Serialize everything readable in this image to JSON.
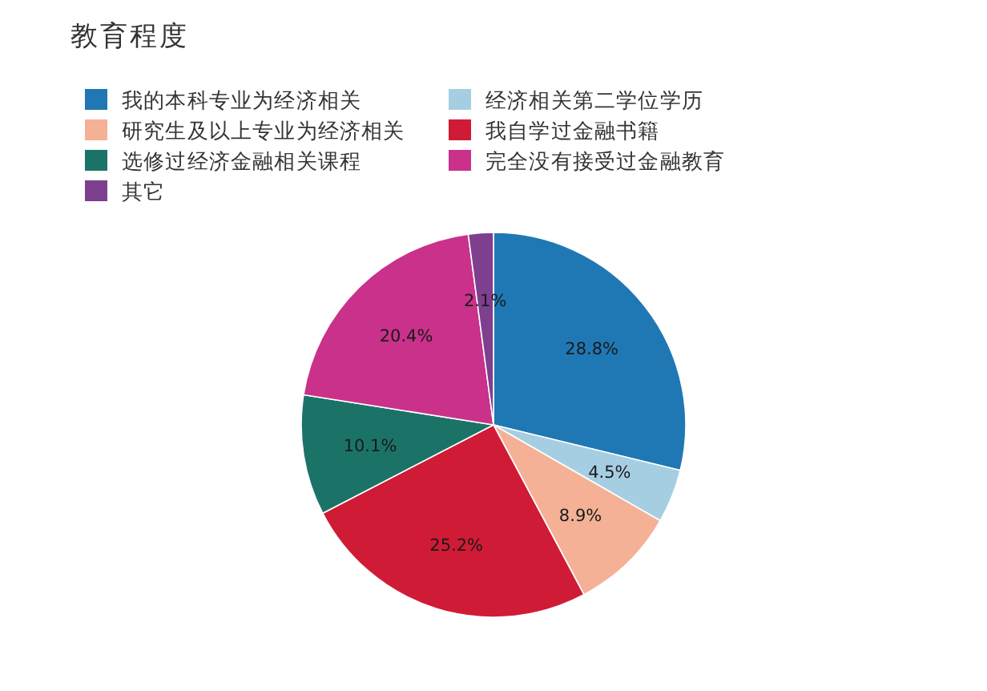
{
  "chart_data": {
    "type": "pie",
    "title": "教育程度",
    "categories": [
      "我的本科专业为经济相关",
      "经济相关第二学位学历",
      "研究生及以上专业为经济相关",
      "我自学过金融书籍",
      "选修过经济金融相关课程",
      "完全没有接受过金融教育",
      "其它"
    ],
    "values": [
      28.8,
      4.5,
      8.9,
      25.2,
      10.1,
      20.4,
      2.1
    ],
    "colors": [
      "#1f78b4",
      "#a6cee3",
      "#f4b196",
      "#d01b36",
      "#1b7368",
      "#c9318a",
      "#7e3f8f"
    ],
    "value_labels": [
      "28.8%",
      "4.5%",
      "8.9%",
      "25.2%",
      "10.1%",
      "20.4%",
      "2.1%"
    ],
    "legend": "top left"
  }
}
